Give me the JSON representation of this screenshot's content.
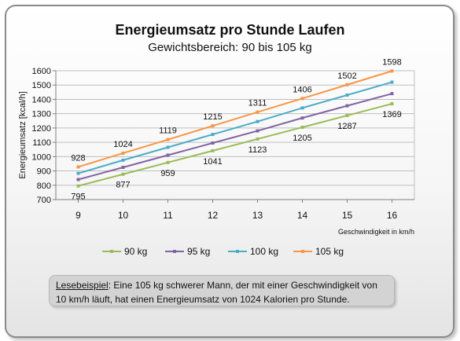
{
  "chart_data": {
    "type": "line",
    "title": "Energieumsatz pro Stunde Laufen",
    "subtitle": "Gewichtsbereich: 90 bis 105 kg",
    "xlabel": "Geschwindigkeit in km/h",
    "ylabel": "Energieumsatz [kcal/h]",
    "x": [
      9,
      10,
      11,
      12,
      13,
      14,
      15,
      16
    ],
    "xlim": [
      8.5,
      16.5
    ],
    "ylim": [
      700,
      1600
    ],
    "yticks": [
      700,
      800,
      900,
      1000,
      1100,
      1200,
      1300,
      1400,
      1500,
      1600
    ],
    "grid": true,
    "legend_position": "bottom",
    "series": [
      {
        "name": "90 kg",
        "color": "#9bbb59",
        "values": [
          795,
          877,
          959,
          1041,
          1123,
          1205,
          1287,
          1369
        ],
        "labels_below": true
      },
      {
        "name": "95 kg",
        "color": "#8064a2",
        "values": [
          840,
          925,
          1010,
          1095,
          1180,
          1270,
          1355,
          1440
        ],
        "labels_below": false,
        "show_labels": false
      },
      {
        "name": "100 kg",
        "color": "#4bacc6",
        "values": [
          883,
          975,
          1065,
          1155,
          1245,
          1340,
          1430,
          1520
        ],
        "labels_below": false,
        "show_labels": false
      },
      {
        "name": "105 kg",
        "color": "#f79646",
        "values": [
          928,
          1024,
          1119,
          1215,
          1311,
          1406,
          1502,
          1598
        ],
        "labels_below": false
      }
    ]
  },
  "note": {
    "label": "Lesebeispiel",
    "text": ":  Eine 105 kg schwerer Mann, der mit einer Geschwindigkeit von 10 km/h läuft,  hat einen Energieumsatz von 1024 Kalorien pro Stunde."
  }
}
